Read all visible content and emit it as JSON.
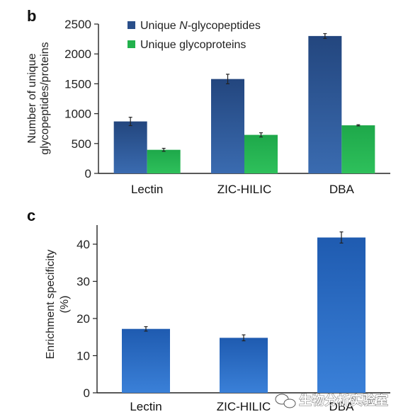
{
  "chart_data": [
    {
      "type": "bar",
      "panel_label": "b",
      "categories": [
        "Lectin",
        "ZIC-HILIC",
        "DBA"
      ],
      "series": [
        {
          "name": "Unique N-glycopeptides",
          "name_parts": [
            "Unique ",
            "N",
            "-glycopeptides"
          ],
          "color": "#2a4f8a",
          "values": [
            870,
            1580,
            2300
          ],
          "errors": [
            70,
            80,
            40
          ]
        },
        {
          "name": "Unique glycoproteins",
          "color": "#22b14c",
          "values": [
            395,
            645,
            805
          ],
          "errors": [
            25,
            35,
            10
          ]
        }
      ],
      "ylabel_lines": [
        "Number of unique",
        "glycopeptides/proteins"
      ],
      "ylim": [
        0,
        2500
      ],
      "yticks": [
        "0",
        "500",
        "1000",
        "1500",
        "2000",
        "2500"
      ],
      "legend": "top-left"
    },
    {
      "type": "bar",
      "panel_label": "c",
      "categories": [
        "Lectin",
        "ZIC-HILIC",
        "DBA"
      ],
      "series": [
        {
          "color": "#2a6bc4",
          "values": [
            17.2,
            14.8,
            41.8
          ],
          "errors": [
            0.6,
            0.8,
            1.5
          ]
        }
      ],
      "ylabel_lines": [
        "Enrichment specificity",
        "(%)"
      ],
      "ylim": [
        0,
        44
      ],
      "yticks": [
        "0",
        "10",
        "20",
        "30",
        "40"
      ]
    }
  ],
  "watermark": {
    "text": "生物分析实验室",
    "icon": "wechat-icon"
  }
}
